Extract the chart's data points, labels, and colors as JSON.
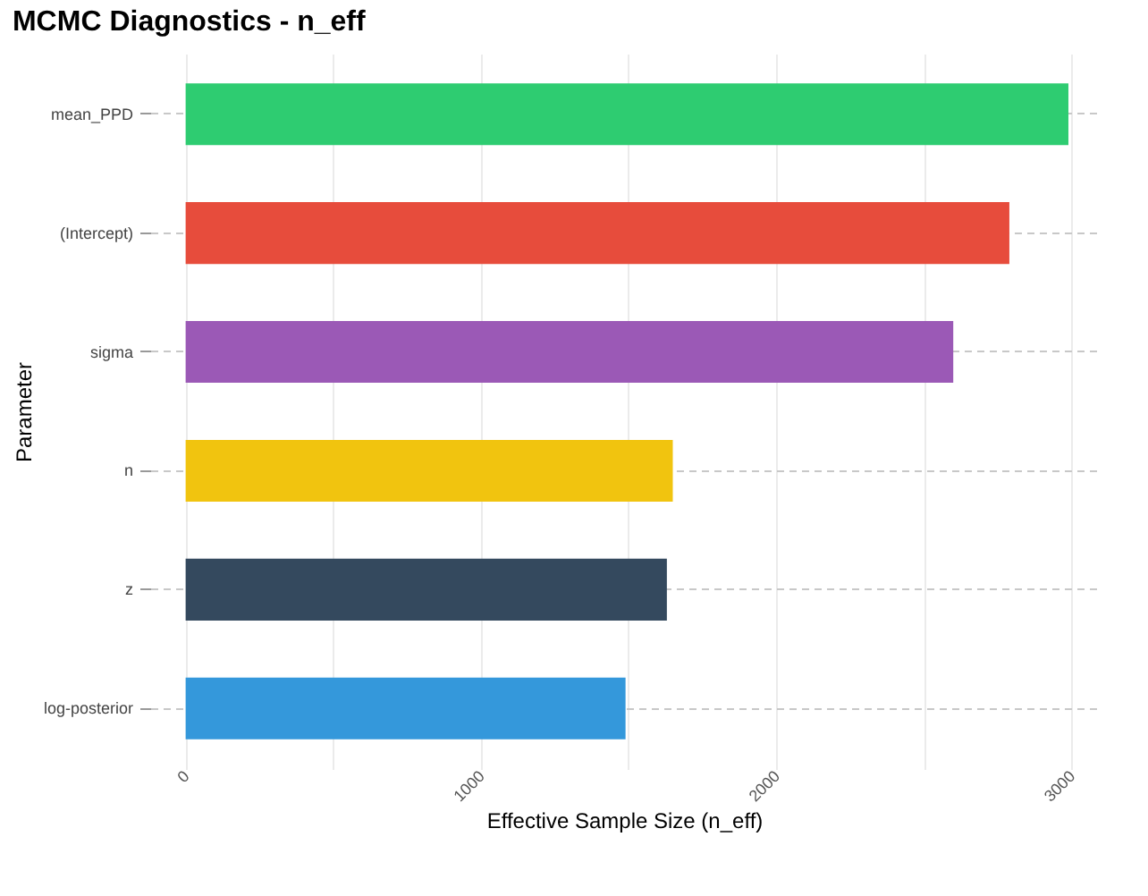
{
  "chart_data": {
    "type": "bar",
    "orientation": "horizontal",
    "title": "MCMC Diagnostics - n_eff",
    "xlabel": "Effective Sample Size (n_eff)",
    "ylabel": "Parameter",
    "categories": [
      "mean_PPD",
      "(Intercept)",
      "sigma",
      "n",
      "z",
      "log-posterior"
    ],
    "values": [
      2990,
      2790,
      2600,
      1650,
      1630,
      1490
    ],
    "colors": [
      "#2ecc71",
      "#e74c3c",
      "#9b59b6",
      "#f1c40f",
      "#34495e",
      "#3498db"
    ],
    "xlim": [
      -120,
      3090
    ],
    "xticks": [
      0,
      {
        "value": 500,
        "label": null
      },
      1000,
      {
        "value": 1500,
        "label": null
      },
      2000,
      {
        "value": 2500,
        "label": null
      },
      3000
    ],
    "grid": true
  }
}
